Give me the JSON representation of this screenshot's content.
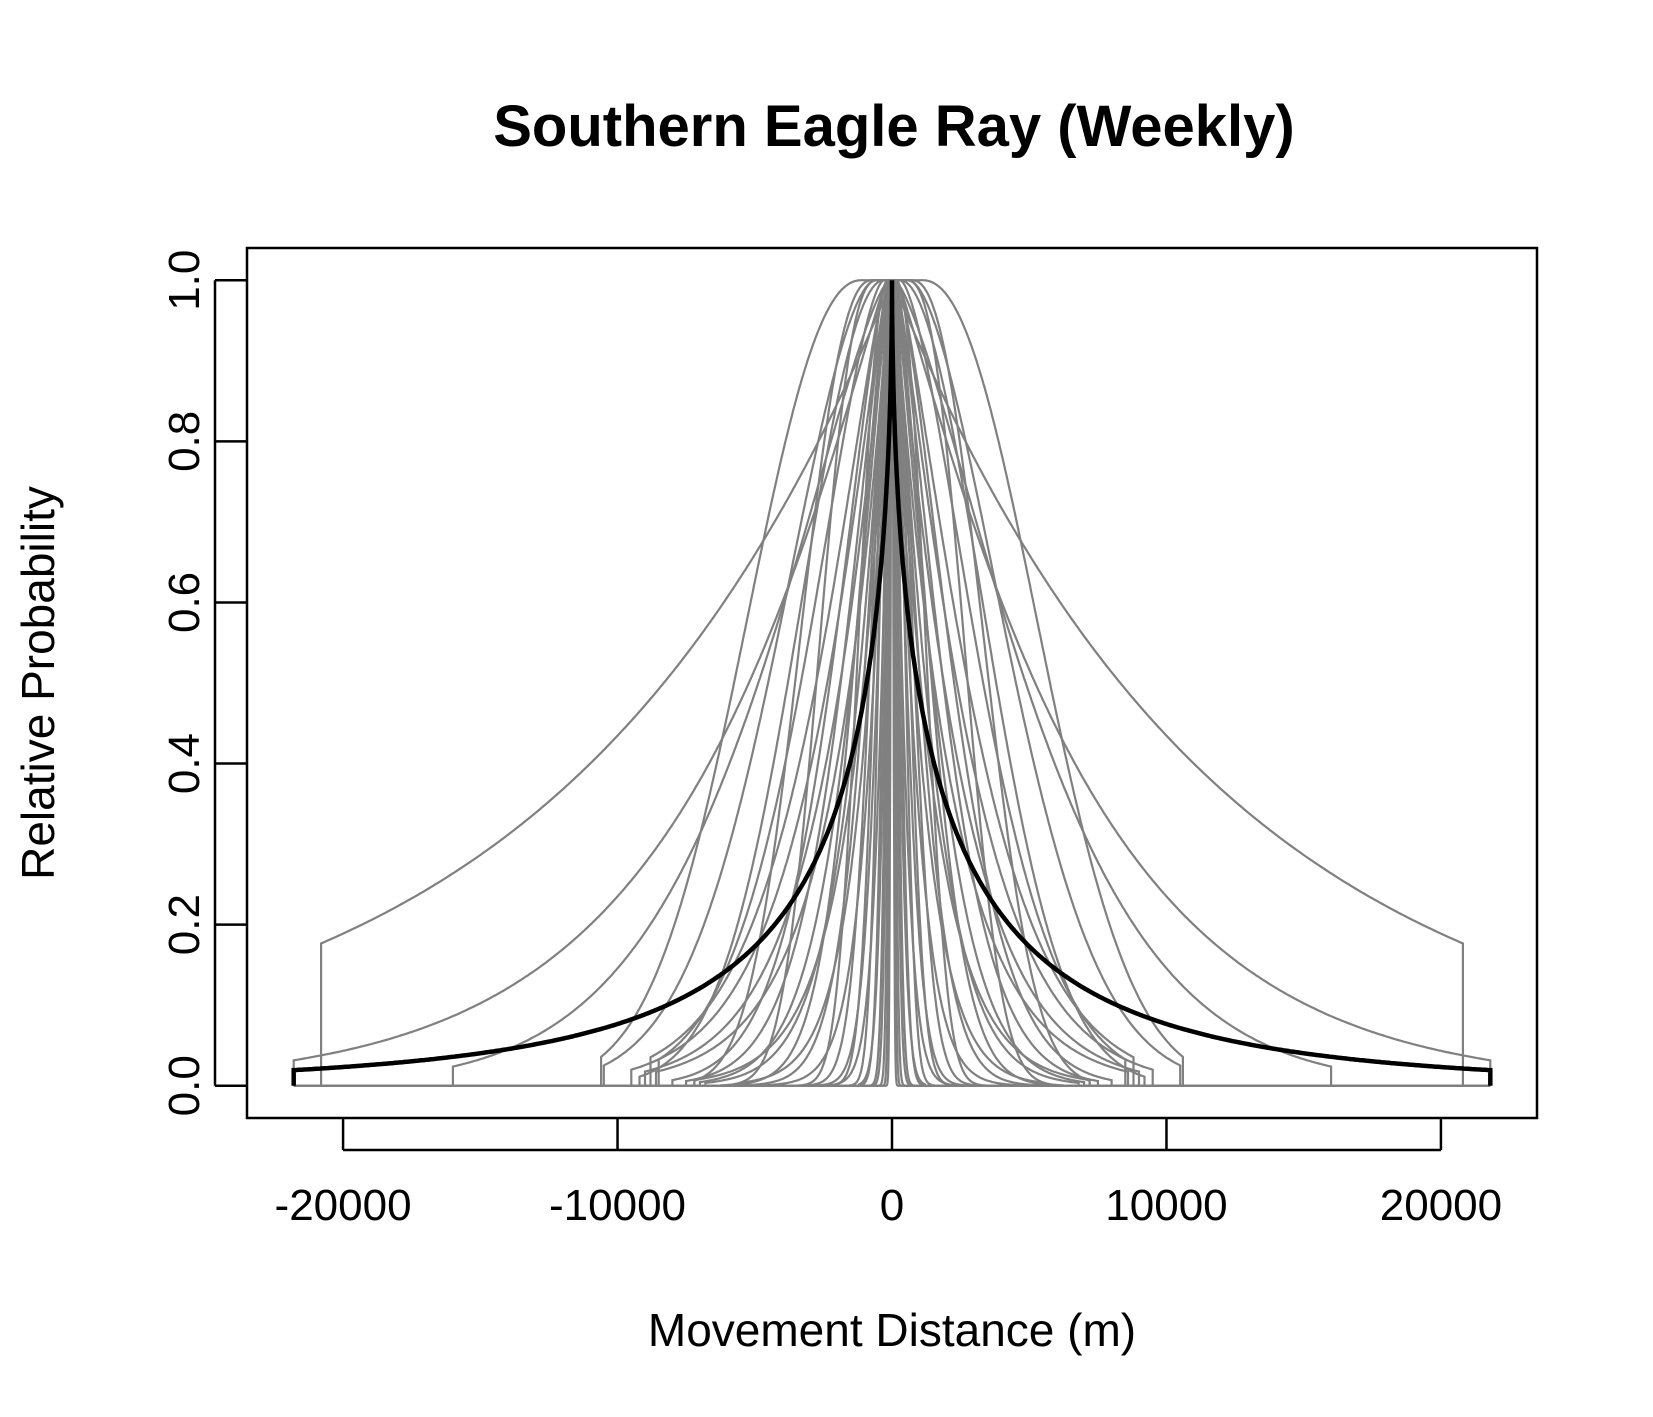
{
  "chart_data": {
    "type": "line",
    "title": "Southern Eagle Ray (Weekly)",
    "xlabel": "Movement Distance (m)",
    "ylabel": "Relative Probability",
    "xlim": [
      -23500,
      23500
    ],
    "ylim": [
      -0.04,
      1.04
    ],
    "x_ticks": [
      -20000,
      -10000,
      0,
      10000,
      20000
    ],
    "y_ticks": [
      0.0,
      0.2,
      0.4,
      0.6,
      0.8,
      1.0
    ],
    "x_tick_labels": [
      "-20000",
      "-10000",
      "0",
      "10000",
      "20000"
    ],
    "y_tick_labels": [
      "0.0",
      "0.2",
      "0.4",
      "0.6",
      "0.8",
      "1.0"
    ],
    "grid": false,
    "legend": "none",
    "colors": {
      "individual": "#808080",
      "mean": "#000000"
    },
    "series_kernels": {
      "note_form": "y = exp(-(|x|/scale)^shape), with optional plateau at peak and vertical drop to 0 at cutoff",
      "individual": [
        {
          "scale": 12000,
          "shape": 1.0,
          "plateau": 0,
          "cutoff": 20800,
          "mirror": true
        },
        {
          "scale": 5500,
          "shape": 2.2,
          "plateau": 1100,
          "cutoff": 10600
        },
        {
          "scale": 4800,
          "shape": 1.8,
          "plateau": 600,
          "cutoff": 10500
        },
        {
          "scale": 7000,
          "shape": 1.1,
          "plateau": 200,
          "cutoff": 22000
        },
        {
          "scale": 3800,
          "shape": 1.6,
          "plateau": 300,
          "cutoff": 8500
        },
        {
          "scale": 3400,
          "shape": 1.3,
          "plateau": 200,
          "cutoff": 8800
        },
        {
          "scale": 3000,
          "shape": 1.2,
          "plateau": 150,
          "cutoff": 9500
        },
        {
          "scale": 2700,
          "shape": 1.5,
          "plateau": 150,
          "cutoff": 8000
        },
        {
          "scale": 2500,
          "shape": 1.1,
          "plateau": 100,
          "cutoff": 9000
        },
        {
          "scale": 2300,
          "shape": 1.4,
          "plateau": 100,
          "cutoff": 7500
        },
        {
          "scale": 2100,
          "shape": 1.0,
          "plateau": 80,
          "cutoff": 8600
        },
        {
          "scale": 1900,
          "shape": 1.3,
          "plateau": 60,
          "cutoff": 7000
        },
        {
          "scale": 1750,
          "shape": 1.6,
          "plateau": 60,
          "cutoff": 6200
        },
        {
          "scale": 1600,
          "shape": 1.2,
          "plateau": 40,
          "cutoff": 6800
        },
        {
          "scale": 1450,
          "shape": 1.0,
          "plateau": 40,
          "cutoff": 7200
        },
        {
          "scale": 1300,
          "shape": 1.4,
          "plateau": 30,
          "cutoff": 5800
        },
        {
          "scale": 1150,
          "shape": 1.1,
          "plateau": 20,
          "cutoff": 5500
        },
        {
          "scale": 1000,
          "shape": 1.8,
          "plateau": 20,
          "cutoff": 4400
        },
        {
          "scale": 900,
          "shape": 1.2,
          "plateau": 10,
          "cutoff": 4800
        },
        {
          "scale": 800,
          "shape": 2.0,
          "plateau": 10,
          "cutoff": 3400
        },
        {
          "scale": 700,
          "shape": 1.5,
          "plateau": 0,
          "cutoff": 3100
        },
        {
          "scale": 600,
          "shape": 2.2,
          "plateau": 0,
          "cutoff": 2700
        },
        {
          "scale": 500,
          "shape": 1.3,
          "plateau": 0,
          "cutoff": 2200
        },
        {
          "scale": 420,
          "shape": 2.0,
          "plateau": 0,
          "cutoff": 1600
        },
        {
          "scale": 350,
          "shape": 1.5,
          "plateau": 0,
          "cutoff": 1200
        },
        {
          "scale": 280,
          "shape": 2.0,
          "plateau": 0,
          "cutoff": 950
        },
        {
          "scale": 220,
          "shape": 1.8,
          "plateau": 0,
          "cutoff": 760
        },
        {
          "scale": 160,
          "shape": 2.0,
          "plateau": 0,
          "cutoff": 560
        },
        {
          "scale": 110,
          "shape": 2.0,
          "plateau": 0,
          "cutoff": 380
        },
        {
          "scale": 70,
          "shape": 2.0,
          "plateau": 0,
          "cutoff": 240
        },
        {
          "scale": 2600,
          "shape": 2.6,
          "plateau": 500,
          "cutoff": 6200
        },
        {
          "scale": 3300,
          "shape": 2.4,
          "plateau": 700,
          "cutoff": 7200
        },
        {
          "scale": 4200,
          "shape": 2.0,
          "plateau": 300,
          "cutoff": 9200
        },
        {
          "scale": 1400,
          "shape": 2.4,
          "plateau": 100,
          "cutoff": 3900
        },
        {
          "scale": 6200,
          "shape": 1.4,
          "plateau": 100,
          "cutoff": 16000
        }
      ],
      "mean": {
        "scale": 1800,
        "shape": 0.55,
        "xmin": -21800,
        "xmax": 21800
      }
    }
  }
}
